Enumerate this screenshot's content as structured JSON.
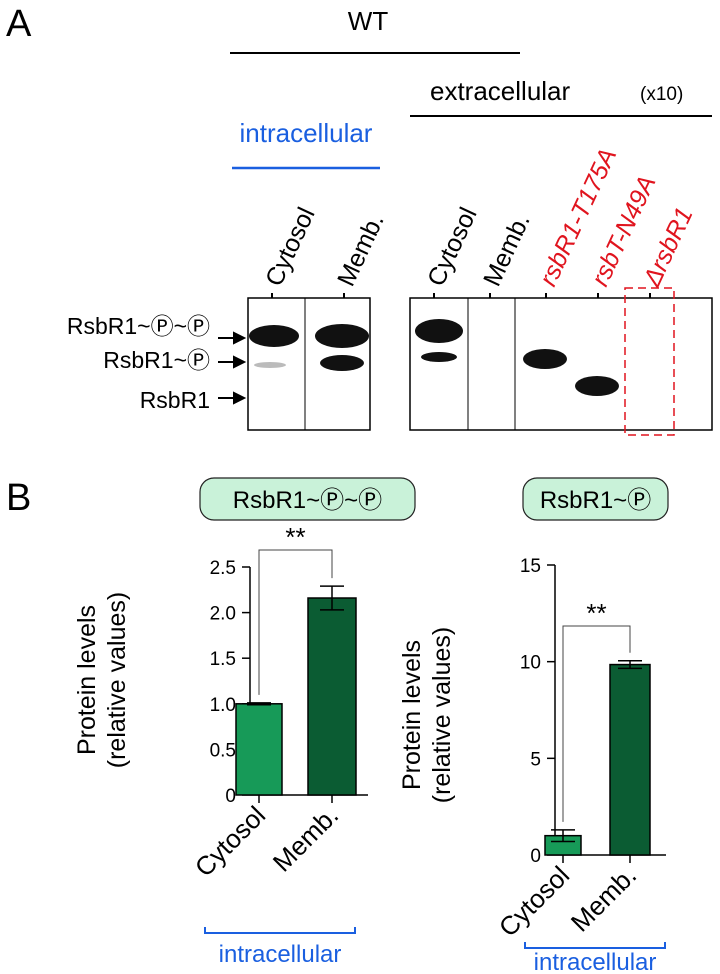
{
  "panel_labels": [
    "A",
    "B"
  ],
  "blot": {
    "wt_label": "WT",
    "extracellular_label": "extracellular",
    "extracellular_factor": "(x10)",
    "intracellular_label": "intracellular",
    "lanes": [
      "Cytosol",
      "Memb.",
      "Cytosol",
      "Memb.",
      "rsbR1-T175A",
      "rsbT-N49A",
      "ΔrsbR1"
    ],
    "bands": [
      "RsbR1~Ⓟ~Ⓟ",
      "RsbR1~Ⓟ",
      "RsbR1"
    ]
  },
  "chart_data": [
    {
      "type": "bar",
      "title": "RsbR1~Ⓟ~Ⓟ",
      "ylabel": [
        "Protein levels",
        "(relative values)"
      ],
      "categories": [
        "Cytosol",
        "Memb."
      ],
      "group_label": "intracellular",
      "values": [
        1.0,
        2.16
      ],
      "errors": [
        0.01,
        0.13
      ],
      "colors": [
        "#179a58",
        "#0b5c33"
      ],
      "significance": "**",
      "ylim": [
        0,
        2.5
      ],
      "yticks": [
        0,
        0.5,
        {
          "value": 1,
          "label": "1.0"
        },
        1.5,
        {
          "value": 2,
          "label": "2.0"
        },
        2.5
      ]
    },
    {
      "type": "bar",
      "title": "RsbR1~Ⓟ",
      "ylabel": [
        "Protein levels",
        "(relative values)"
      ],
      "categories": [
        "Cytosol",
        "Memb."
      ],
      "group_label": "intracellular",
      "values": [
        1.0,
        9.85
      ],
      "errors": [
        0.3,
        0.2
      ],
      "colors": [
        "#179a58",
        "#0b5c33"
      ],
      "significance": "**",
      "ylim": [
        0,
        15
      ],
      "yticks": [
        0,
        5,
        10,
        15
      ]
    }
  ]
}
